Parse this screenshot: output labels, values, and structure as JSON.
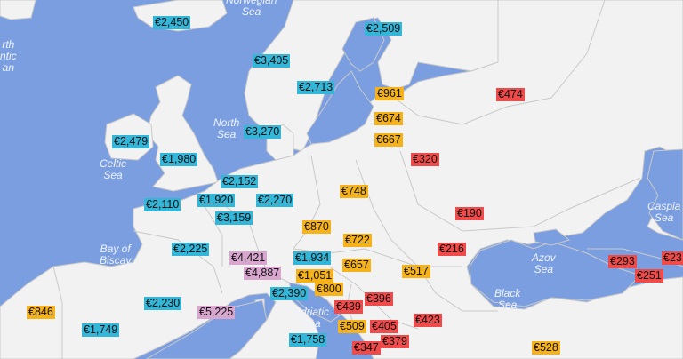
{
  "map": {
    "colors": {
      "sea": "#7b9ee0",
      "land": "#f2f2f2",
      "border": "#c9c9c9"
    },
    "sea_labels": [
      {
        "id": "norwegian-sea",
        "text": "Norwegian\nSea"
      },
      {
        "id": "atlantic",
        "text": "rth\nntic\nan"
      },
      {
        "id": "north-sea",
        "text": "North\nSea"
      },
      {
        "id": "celtic-sea",
        "text": "Celtic\nSea"
      },
      {
        "id": "bay-of-biscay",
        "text": "Bay of\nBiscay"
      },
      {
        "id": "adriatic-sea",
        "text": "Adriatic\nSea"
      },
      {
        "id": "azov-sea",
        "text": "Azov\nSea"
      },
      {
        "id": "black-sea",
        "text": "Black\nSea"
      },
      {
        "id": "caspian-sea",
        "text": "Caspia\nSea"
      }
    ],
    "price_labels": [
      {
        "id": "iceland",
        "text": "€2,450",
        "color": "blue"
      },
      {
        "id": "finland",
        "text": "€2,509",
        "color": "blue"
      },
      {
        "id": "norway",
        "text": "€3,405",
        "color": "blue"
      },
      {
        "id": "sweden",
        "text": "€2,713",
        "color": "blue"
      },
      {
        "id": "estonia",
        "text": "€961",
        "color": "orange"
      },
      {
        "id": "russia",
        "text": "€474",
        "color": "red"
      },
      {
        "id": "latvia",
        "text": "€674",
        "color": "orange"
      },
      {
        "id": "lithuania",
        "text": "€667",
        "color": "orange"
      },
      {
        "id": "denmark",
        "text": "€3,270",
        "color": "blue"
      },
      {
        "id": "ireland",
        "text": "€2,479",
        "color": "blue"
      },
      {
        "id": "uk",
        "text": "€1,980",
        "color": "blue"
      },
      {
        "id": "belarus",
        "text": "€320",
        "color": "red"
      },
      {
        "id": "netherlands",
        "text": "€2,152",
        "color": "blue"
      },
      {
        "id": "poland",
        "text": "€748",
        "color": "orange"
      },
      {
        "id": "belgium",
        "text": "€1,920",
        "color": "blue"
      },
      {
        "id": "germany",
        "text": "€2,270",
        "color": "blue"
      },
      {
        "id": "jersey",
        "text": "€2,110",
        "color": "blue"
      },
      {
        "id": "luxembourg",
        "text": "€3,159",
        "color": "blue"
      },
      {
        "id": "ukraine",
        "text": "€190",
        "color": "red"
      },
      {
        "id": "czechia",
        "text": "€870",
        "color": "orange"
      },
      {
        "id": "slovakia",
        "text": "€722",
        "color": "orange"
      },
      {
        "id": "moldova",
        "text": "€216",
        "color": "red"
      },
      {
        "id": "france",
        "text": "€2,225",
        "color": "blue"
      },
      {
        "id": "liechtenstein",
        "text": "€4,421",
        "color": "pink"
      },
      {
        "id": "austria",
        "text": "€1,934",
        "color": "blue"
      },
      {
        "id": "hungary",
        "text": "€657",
        "color": "orange"
      },
      {
        "id": "georgia",
        "text": "€293",
        "color": "red"
      },
      {
        "id": "azerbaijan",
        "text": "€23",
        "color": "red"
      },
      {
        "id": "switzerland",
        "text": "€4,887",
        "color": "pink"
      },
      {
        "id": "slovenia",
        "text": "€1,051",
        "color": "orange"
      },
      {
        "id": "romania",
        "text": "€517",
        "color": "orange"
      },
      {
        "id": "armenia",
        "text": "€251",
        "color": "red"
      },
      {
        "id": "croatia",
        "text": "€800",
        "color": "orange"
      },
      {
        "id": "italy",
        "text": "€2,390",
        "color": "blue"
      },
      {
        "id": "serbia",
        "text": "€396",
        "color": "red"
      },
      {
        "id": "andorra",
        "text": "€2,230",
        "color": "blue"
      },
      {
        "id": "portugal",
        "text": "€846",
        "color": "orange"
      },
      {
        "id": "monaco",
        "text": "€5,225",
        "color": "pink"
      },
      {
        "id": "bosnia",
        "text": "€439",
        "color": "red"
      },
      {
        "id": "bulgaria",
        "text": "€423",
        "color": "red"
      },
      {
        "id": "spain",
        "text": "€1,749",
        "color": "blue"
      },
      {
        "id": "san-marino",
        "text": "€1,758",
        "color": "blue"
      },
      {
        "id": "montenegro",
        "text": "€509",
        "color": "orange"
      },
      {
        "id": "kosovo",
        "text": "€405",
        "color": "red"
      },
      {
        "id": "north-macedonia",
        "text": "€379",
        "color": "red"
      },
      {
        "id": "albania",
        "text": "€347",
        "color": "red"
      },
      {
        "id": "turkey",
        "text": "€528",
        "color": "orange"
      }
    ]
  }
}
